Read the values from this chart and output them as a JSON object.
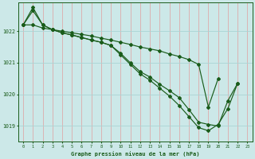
{
  "bg_color": "#cce8e8",
  "grid_color_v": "#ddaaaa",
  "grid_color_h": "#aad4d4",
  "line_color": "#1a5c1a",
  "xlabel": "Graphe pression niveau de la mer (hPa)",
  "xlim_min": -0.5,
  "xlim_max": 23.5,
  "ylim_min": 1018.5,
  "ylim_max": 1022.9,
  "yticks": [
    1019,
    1020,
    1021,
    1022
  ],
  "xticks": [
    0,
    1,
    2,
    3,
    4,
    5,
    6,
    7,
    8,
    9,
    10,
    11,
    12,
    13,
    14,
    15,
    16,
    17,
    18,
    19,
    20,
    21,
    22,
    23
  ],
  "series1_x": [
    0,
    1,
    2,
    3,
    4,
    5,
    6,
    7,
    8,
    9,
    10,
    11,
    12,
    13,
    14,
    15,
    16,
    17,
    18,
    19,
    20,
    21,
    22
  ],
  "series1_y": [
    1022.2,
    1022.75,
    1022.2,
    1022.05,
    1021.95,
    1021.88,
    1021.8,
    1021.72,
    1021.65,
    1021.55,
    1021.25,
    1020.95,
    1020.65,
    1020.45,
    1020.2,
    1019.95,
    1019.65,
    1019.3,
    1018.95,
    1018.85,
    1019.05,
    1019.55,
    1020.35
  ],
  "series2_x": [
    0,
    1,
    2,
    3,
    4,
    5,
    6,
    7,
    8,
    9,
    10,
    11,
    12,
    13,
    14,
    15,
    16,
    17,
    18,
    19,
    20,
    21,
    22
  ],
  "series2_y": [
    1022.2,
    1022.65,
    1022.2,
    1022.05,
    1021.95,
    1021.88,
    1021.8,
    1021.72,
    1021.65,
    1021.55,
    1021.3,
    1021.0,
    1020.72,
    1020.55,
    1020.32,
    1020.12,
    1019.9,
    1019.52,
    1019.12,
    1019.05,
    1019.0,
    1019.8,
    1020.35
  ],
  "series3_x": [
    0,
    1,
    2,
    3,
    4,
    5,
    6,
    7,
    8,
    9,
    10,
    11,
    12,
    13,
    14,
    15,
    16,
    17,
    18,
    19,
    20
  ],
  "series3_y": [
    1022.2,
    1022.2,
    1022.1,
    1022.05,
    1022.0,
    1021.95,
    1021.9,
    1021.85,
    1021.78,
    1021.72,
    1021.65,
    1021.58,
    1021.5,
    1021.44,
    1021.38,
    1021.28,
    1021.2,
    1021.1,
    1020.95,
    1019.6,
    1020.5
  ]
}
